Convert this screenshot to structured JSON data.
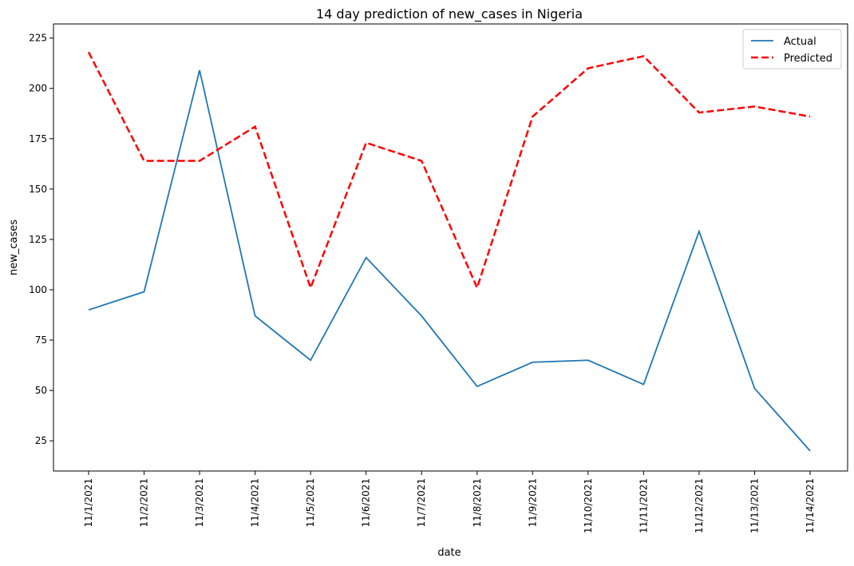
{
  "chart_data": {
    "type": "line",
    "title": "14 day prediction of new_cases in Nigeria",
    "xlabel": "date",
    "ylabel": "new_cases",
    "categories": [
      "11/1/2021",
      "11/2/2021",
      "11/3/2021",
      "11/4/2021",
      "11/5/2021",
      "11/6/2021",
      "11/7/2021",
      "11/8/2021",
      "11/9/2021",
      "11/10/2021",
      "11/11/2021",
      "11/12/2021",
      "11/13/2021",
      "11/14/2021"
    ],
    "ylim": [
      10,
      232
    ],
    "yticks": [
      25,
      50,
      75,
      100,
      125,
      150,
      175,
      200,
      225
    ],
    "grid": false,
    "legend_position": "top-right",
    "series": [
      {
        "name": "Actual",
        "color": "#1f77b4",
        "style": "solid",
        "values": [
          90,
          99,
          209,
          87,
          65,
          116,
          87,
          52,
          64,
          65,
          53,
          129,
          51,
          20
        ]
      },
      {
        "name": "Predicted",
        "color": "#ff0000",
        "style": "dashed",
        "values": [
          218,
          164,
          164,
          181,
          101,
          173,
          164,
          101,
          186,
          210,
          216,
          188,
          191,
          186
        ]
      }
    ]
  }
}
